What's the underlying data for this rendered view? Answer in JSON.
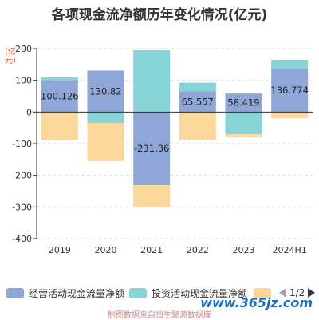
{
  "title": "各项现金流净额历年变化情况(亿元)",
  "unit": "(亿元)",
  "colors": {
    "series0": "#8ea6d8",
    "series1": "#86d4d6",
    "series2": "#fbd79a",
    "axis": "#333333",
    "grid": "#d9d9d9"
  },
  "chart_data": {
    "type": "bar",
    "stacked": true,
    "categories": [
      "2019",
      "2020",
      "2021",
      "2022",
      "2023",
      "2024H1"
    ],
    "ylim": [
      -400,
      200
    ],
    "yticks": [
      -400,
      -300,
      -200,
      -100,
      0,
      100,
      200
    ],
    "grid": true,
    "legend": "bottom",
    "series": [
      {
        "name": "经营活动现金流量净额",
        "values": [
          100.126,
          130.82,
          -231.36,
          65.557,
          58.419,
          136.774
        ],
        "labels": [
          "100.126",
          "130.82",
          "-231.36",
          "65.557",
          "58.419",
          "136.774"
        ]
      },
      {
        "name": "投资活动现金流量净额",
        "values": [
          9,
          -35,
          195,
          27,
          -70,
          28
        ]
      },
      {
        "name": "",
        "values": [
          -90,
          -120,
          -70,
          -88,
          -10,
          -20
        ]
      }
    ]
  },
  "legend": {
    "items": [
      "经营活动现金流量净额",
      "投资活动现金流量净额",
      ""
    ],
    "page": "1/2"
  },
  "watermark": "www.365jz.com",
  "footer": "制图数据来自恒生聚源数据库"
}
